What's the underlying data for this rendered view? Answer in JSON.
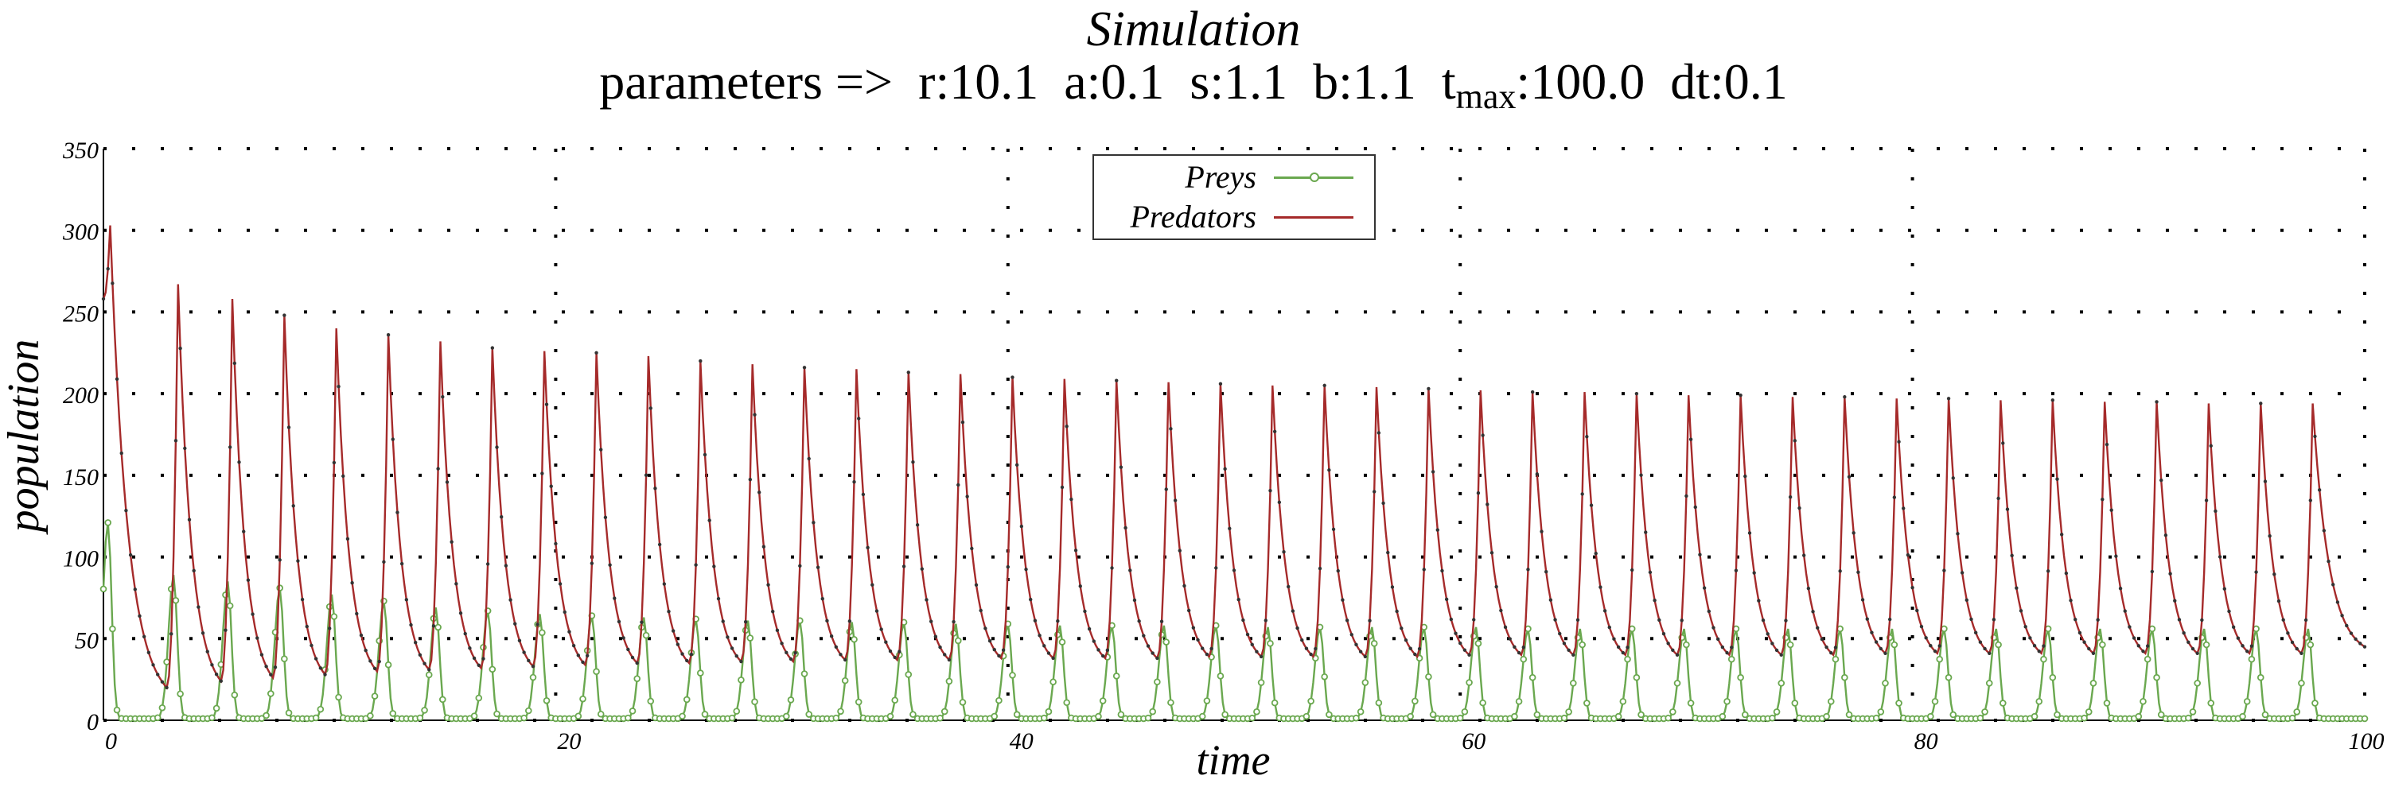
{
  "title": "Simulation",
  "subtitle": {
    "prefix": "parameters =>  r:10.1  a:0.1  s:1.1  b:1.1  t",
    "sub": "max",
    "suffix": ":100.0  dt:0.1"
  },
  "legend": [
    {
      "name": "Preys",
      "color": "#6aa84f"
    },
    {
      "name": "Predators",
      "color": "#a52a2a"
    }
  ],
  "chart_data": {
    "type": "line",
    "title": "Simulation",
    "xlabel": "time",
    "ylabel": "population",
    "xlim": [
      0,
      100
    ],
    "ylim": [
      0,
      350
    ],
    "xticks": [
      0,
      20,
      40,
      60,
      80,
      100
    ],
    "yticks": [
      0,
      50,
      100,
      150,
      200,
      250,
      300,
      350
    ],
    "grid": true,
    "legend_position": "top-center",
    "period": 2.3,
    "series": [
      {
        "name": "Preys",
        "color": "#6aa84f",
        "marker": "circle",
        "peaks": [
          [
            0.2,
            120
          ],
          [
            3.1,
            88
          ],
          [
            5.5,
            84
          ],
          [
            7.8,
            80
          ],
          [
            10.1,
            76
          ],
          [
            12.4,
            72
          ],
          [
            14.7,
            68
          ],
          [
            17.0,
            66
          ],
          [
            19.3,
            64
          ],
          [
            21.6,
            63
          ],
          [
            23.9,
            62
          ],
          [
            26.2,
            61
          ],
          [
            28.5,
            60
          ],
          [
            30.8,
            60
          ],
          [
            33.1,
            59
          ],
          [
            35.4,
            59
          ],
          [
            37.7,
            58
          ],
          [
            40.0,
            58
          ],
          [
            42.3,
            57
          ],
          [
            44.6,
            57
          ],
          [
            46.9,
            57
          ],
          [
            49.2,
            57
          ],
          [
            51.5,
            56
          ],
          [
            53.8,
            56
          ],
          [
            56.1,
            56
          ],
          [
            58.4,
            56
          ],
          [
            60.7,
            56
          ],
          [
            63.0,
            55
          ],
          [
            65.3,
            55
          ],
          [
            67.6,
            55
          ],
          [
            69.9,
            55
          ],
          [
            72.2,
            55
          ],
          [
            74.5,
            55
          ],
          [
            76.8,
            55
          ],
          [
            79.1,
            55
          ],
          [
            81.4,
            55
          ],
          [
            83.7,
            55
          ],
          [
            86.0,
            55
          ],
          [
            88.3,
            55
          ],
          [
            90.6,
            55
          ],
          [
            92.9,
            55
          ],
          [
            95.2,
            55
          ],
          [
            97.5,
            55
          ]
        ],
        "trough": 1
      },
      {
        "name": "Predators",
        "color": "#a52a2a",
        "marker": "dot",
        "peaks": [
          [
            0.3,
            303
          ],
          [
            3.3,
            267
          ],
          [
            5.7,
            258
          ],
          [
            8.0,
            248
          ],
          [
            10.3,
            240
          ],
          [
            12.6,
            236
          ],
          [
            14.9,
            232
          ],
          [
            17.2,
            228
          ],
          [
            19.5,
            226
          ],
          [
            21.8,
            225
          ],
          [
            24.1,
            223
          ],
          [
            26.4,
            220
          ],
          [
            28.7,
            218
          ],
          [
            31.0,
            216
          ],
          [
            33.3,
            215
          ],
          [
            35.6,
            213
          ],
          [
            37.9,
            212
          ],
          [
            40.2,
            210
          ],
          [
            42.5,
            209
          ],
          [
            44.8,
            208
          ],
          [
            47.1,
            207
          ],
          [
            49.4,
            206
          ],
          [
            51.7,
            205
          ],
          [
            54.0,
            205
          ],
          [
            56.3,
            204
          ],
          [
            58.6,
            203
          ],
          [
            60.9,
            202
          ],
          [
            63.2,
            201
          ],
          [
            65.5,
            201
          ],
          [
            67.8,
            200
          ],
          [
            70.1,
            199
          ],
          [
            72.4,
            199
          ],
          [
            74.7,
            198
          ],
          [
            77.0,
            198
          ],
          [
            79.3,
            197
          ],
          [
            81.6,
            197
          ],
          [
            83.9,
            196
          ],
          [
            86.2,
            196
          ],
          [
            88.5,
            195
          ],
          [
            90.8,
            195
          ],
          [
            93.1,
            194
          ],
          [
            95.4,
            194
          ],
          [
            97.7,
            194
          ]
        ],
        "troughs": [
          [
            2.8,
            20
          ],
          [
            5.2,
            24
          ],
          [
            7.5,
            26
          ],
          [
            9.8,
            28
          ],
          [
            12.1,
            30
          ],
          [
            14.4,
            31
          ],
          [
            16.7,
            32
          ],
          [
            19.0,
            33
          ],
          [
            21.3,
            34
          ],
          [
            23.6,
            35
          ],
          [
            25.9,
            35
          ],
          [
            28.2,
            36
          ],
          [
            30.5,
            36
          ],
          [
            32.8,
            37
          ],
          [
            35.1,
            37
          ],
          [
            37.4,
            37
          ],
          [
            39.7,
            38
          ],
          [
            42.0,
            38
          ],
          [
            44.3,
            38
          ],
          [
            46.6,
            38
          ],
          [
            48.9,
            39
          ],
          [
            51.2,
            39
          ],
          [
            53.5,
            39
          ],
          [
            55.8,
            39
          ],
          [
            58.1,
            39
          ],
          [
            60.4,
            40
          ],
          [
            62.7,
            40
          ],
          [
            65.0,
            40
          ],
          [
            67.3,
            40
          ],
          [
            69.6,
            40
          ],
          [
            71.9,
            40
          ],
          [
            74.2,
            40
          ],
          [
            76.5,
            40
          ],
          [
            78.8,
            41
          ],
          [
            81.1,
            41
          ],
          [
            83.4,
            41
          ],
          [
            85.7,
            41
          ],
          [
            88.0,
            41
          ],
          [
            90.3,
            41
          ],
          [
            92.6,
            41
          ],
          [
            94.9,
            41
          ],
          [
            97.2,
            41
          ],
          [
            100.0,
            45
          ]
        ]
      }
    ]
  }
}
